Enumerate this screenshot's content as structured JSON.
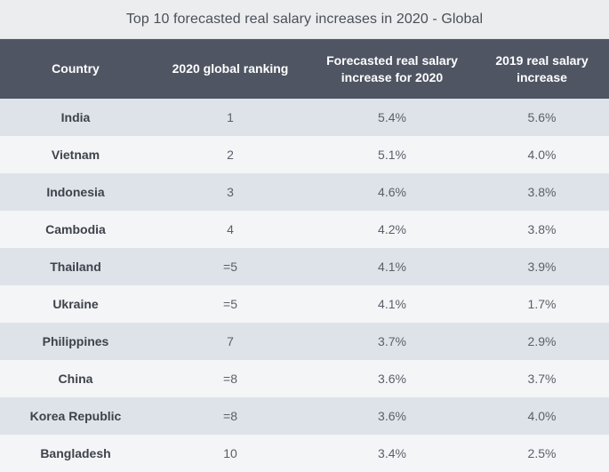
{
  "title": "Top 10 forecasted real salary increases in 2020 - Global",
  "colors": {
    "header_bg": "#4f5563",
    "header_text": "#ffffff",
    "row_odd": "#dee3ea",
    "row_even": "#f4f5f7",
    "title_bg": "#ecedee"
  },
  "chart_data": {
    "type": "table",
    "title": "Top 10 forecasted real salary increases in 2020 - Global",
    "columns": [
      "Country",
      "2020 global ranking",
      "Forecasted real salary increase for 2020",
      "2019 real salary increase"
    ],
    "rows": [
      [
        "India",
        "1",
        "5.4%",
        "5.6%"
      ],
      [
        "Vietnam",
        "2",
        "5.1%",
        "4.0%"
      ],
      [
        "Indonesia",
        "3",
        "4.6%",
        "3.8%"
      ],
      [
        "Cambodia",
        "4",
        "4.2%",
        "3.8%"
      ],
      [
        "Thailand",
        "=5",
        "4.1%",
        "3.9%"
      ],
      [
        "Ukraine",
        "=5",
        "4.1%",
        "1.7%"
      ],
      [
        "Philippines",
        "7",
        "3.7%",
        "2.9%"
      ],
      [
        "China",
        "=8",
        "3.6%",
        "3.7%"
      ],
      [
        "Korea Republic",
        "=8",
        "3.6%",
        "4.0%"
      ],
      [
        "Bangladesh",
        "10",
        "3.4%",
        "2.5%"
      ]
    ]
  }
}
